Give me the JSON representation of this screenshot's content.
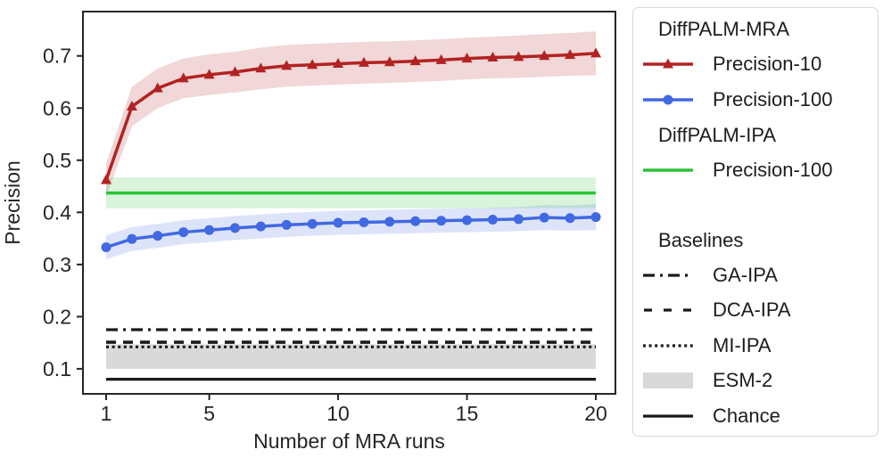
{
  "colors": {
    "red": "#b22222",
    "blue": "#4169e1",
    "green": "#2bc437",
    "black": "#1a1a1a",
    "gray_band": "#d9d9d9",
    "axis": "#262626"
  },
  "legend": {
    "groups": [
      {
        "title": "DiffPALM-MRA",
        "items": [
          {
            "label": "Precision-10",
            "swatch": "red-triangle-line"
          },
          {
            "label": "Precision-100",
            "swatch": "blue-circle-line"
          }
        ]
      },
      {
        "title": "DiffPALM-IPA",
        "items": [
          {
            "label": "Precision-100",
            "swatch": "green-line"
          }
        ]
      },
      {
        "title": "Baselines",
        "items": [
          {
            "label": "GA-IPA",
            "swatch": "black-dashdot-line"
          },
          {
            "label": "DCA-IPA",
            "swatch": "black-dashed-line"
          },
          {
            "label": "MI-IPA",
            "swatch": "black-dotted-line"
          },
          {
            "label": "ESM-2",
            "swatch": "gray-patch"
          },
          {
            "label": "Chance",
            "swatch": "black-solid-line"
          }
        ]
      }
    ]
  },
  "chart_data": {
    "type": "line",
    "title": "",
    "xlabel": "Number of MRA runs",
    "ylabel": "Precision",
    "xlim": [
      0.1,
      20.76
    ],
    "ylim": [
      0.052,
      0.785
    ],
    "xticks": [
      1,
      5,
      10,
      15,
      20
    ],
    "yticks": [
      0.1,
      0.2,
      0.3,
      0.4,
      0.5,
      0.6,
      0.7
    ],
    "grid": false,
    "legend_position": "right-outside",
    "x": [
      1,
      2,
      3,
      4,
      5,
      6,
      7,
      8,
      9,
      10,
      11,
      12,
      13,
      14,
      15,
      16,
      17,
      18,
      19,
      20
    ],
    "x_span": [
      1,
      20
    ],
    "series": [
      {
        "name": "DiffPALM-MRA Precision-10",
        "color": "#b22222",
        "marker": "triangle",
        "values": [
          0.462,
          0.603,
          0.638,
          0.657,
          0.664,
          0.669,
          0.676,
          0.681,
          0.683,
          0.685,
          0.687,
          0.688,
          0.69,
          0.692,
          0.695,
          0.697,
          0.698,
          0.7,
          0.702,
          0.705
        ],
        "band_low": [
          0.43,
          0.565,
          0.6,
          0.619,
          0.625,
          0.63,
          0.636,
          0.641,
          0.643,
          0.645,
          0.647,
          0.648,
          0.65,
          0.652,
          0.655,
          0.657,
          0.658,
          0.66,
          0.662,
          0.663
        ],
        "band_high": [
          0.494,
          0.641,
          0.676,
          0.695,
          0.703,
          0.708,
          0.716,
          0.721,
          0.723,
          0.725,
          0.727,
          0.728,
          0.73,
          0.732,
          0.735,
          0.737,
          0.739,
          0.742,
          0.744,
          0.747
        ]
      },
      {
        "name": "DiffPALM-MRA Precision-100",
        "color": "#4169e1",
        "marker": "circle",
        "values": [
          0.333,
          0.349,
          0.355,
          0.362,
          0.366,
          0.37,
          0.373,
          0.376,
          0.378,
          0.38,
          0.381,
          0.382,
          0.383,
          0.384,
          0.385,
          0.386,
          0.387,
          0.39,
          0.389,
          0.391
        ],
        "band_low": [
          0.31,
          0.326,
          0.332,
          0.339,
          0.343,
          0.347,
          0.35,
          0.353,
          0.355,
          0.357,
          0.358,
          0.359,
          0.36,
          0.361,
          0.362,
          0.363,
          0.364,
          0.366,
          0.365,
          0.366
        ],
        "band_high": [
          0.356,
          0.372,
          0.378,
          0.385,
          0.389,
          0.393,
          0.396,
          0.399,
          0.401,
          0.403,
          0.404,
          0.405,
          0.406,
          0.407,
          0.408,
          0.409,
          0.41,
          0.414,
          0.413,
          0.416
        ]
      }
    ],
    "hlines": [
      {
        "name": "DiffPALM-IPA Precision-100",
        "color": "#2bc437",
        "style": "solid",
        "width": 3.5,
        "y": 0.437,
        "band": [
          0.408,
          0.467
        ]
      },
      {
        "name": "GA-IPA",
        "color": "#1a1a1a",
        "style": "dashdot",
        "width": 3.2,
        "y": 0.175
      },
      {
        "name": "DCA-IPA",
        "color": "#1a1a1a",
        "style": "dashed",
        "width": 3.6,
        "y": 0.151
      },
      {
        "name": "MI-IPA",
        "color": "#1a1a1a",
        "style": "dotted",
        "width": 3.2,
        "y": 0.142
      },
      {
        "name": "Chance",
        "color": "#1a1a1a",
        "style": "solid",
        "width": 3.2,
        "y": 0.08
      }
    ],
    "bands": [
      {
        "name": "ESM-2",
        "color": "#d9d9d9",
        "range": [
          0.1,
          0.147
        ]
      }
    ]
  }
}
